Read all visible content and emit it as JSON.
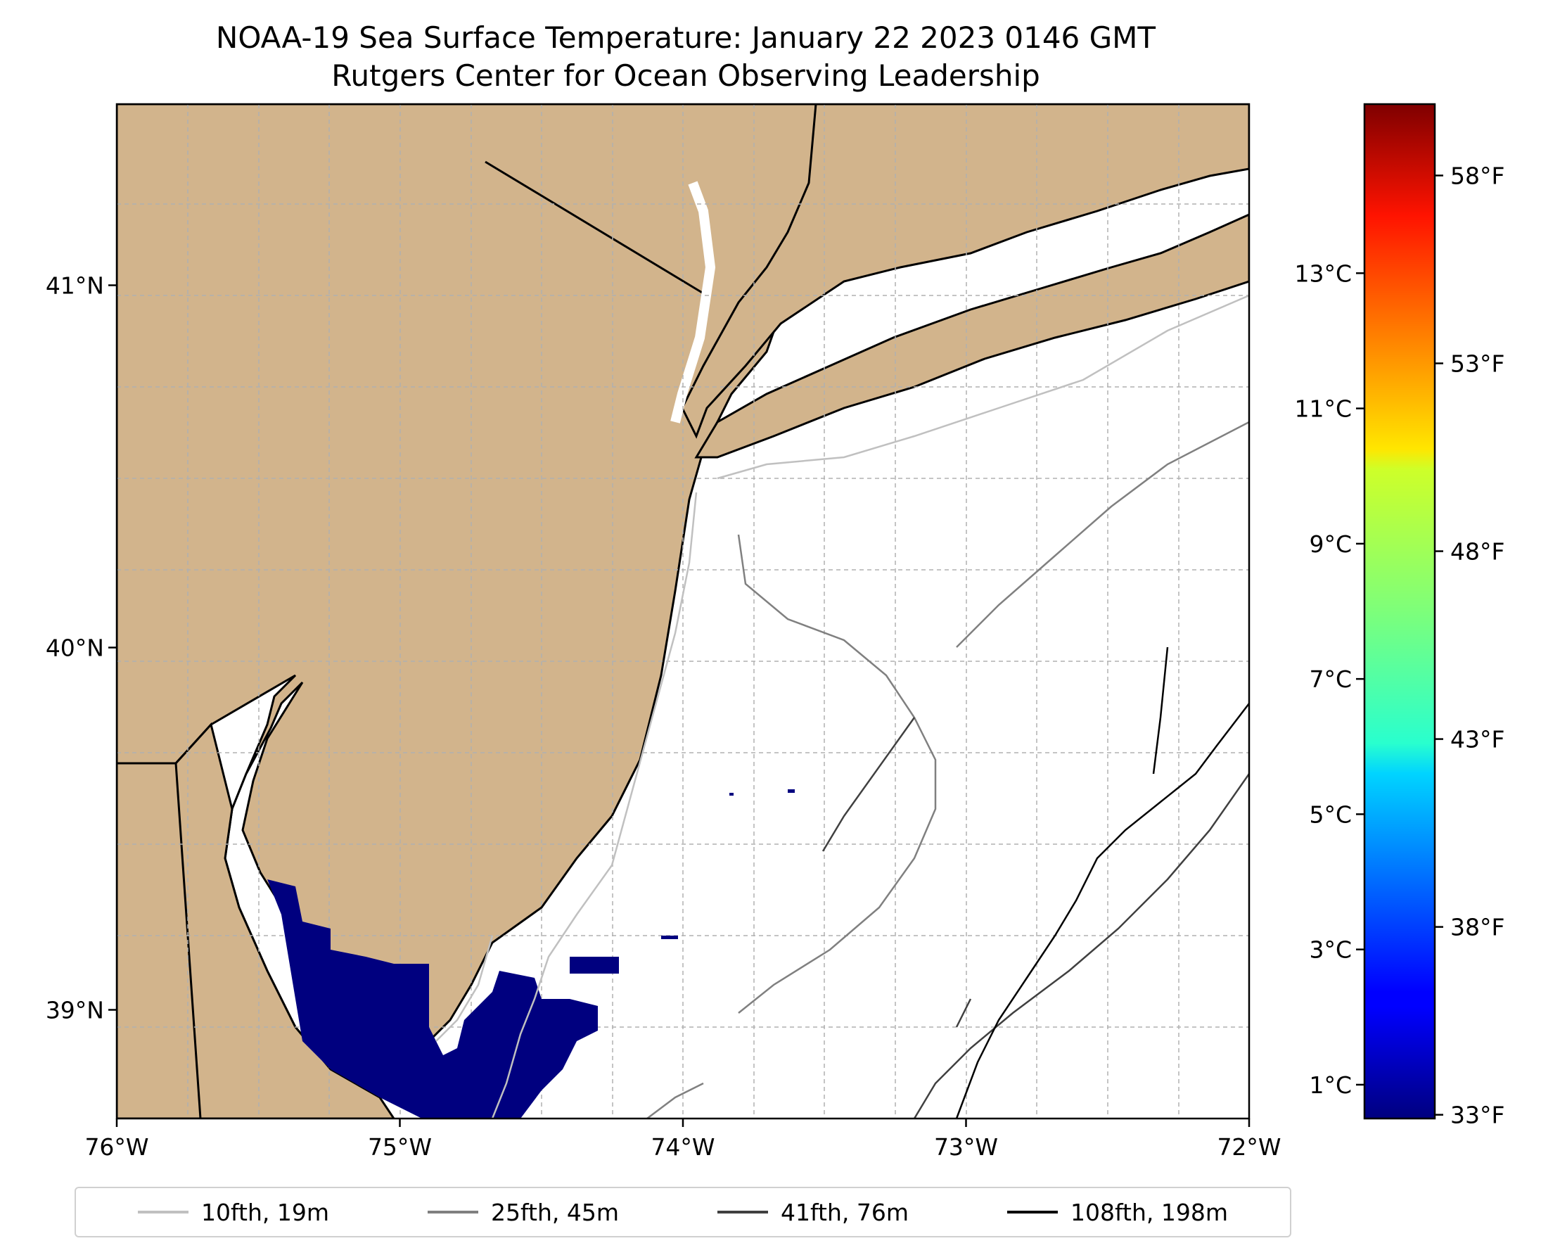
{
  "title": {
    "line1": "NOAA-19 Sea Surface Temperature: January 22 2023 0146 GMT",
    "line2": "Rutgers Center for Ocean Observing Leadership"
  },
  "map": {
    "lon_range": [
      -76,
      -72
    ],
    "lat_range": [
      38.7,
      41.5
    ],
    "lon_ticks": [
      {
        "value": -76,
        "label": "76°W"
      },
      {
        "value": -75,
        "label": "75°W"
      },
      {
        "value": -74,
        "label": "74°W"
      },
      {
        "value": -73,
        "label": "73°W"
      },
      {
        "value": -72,
        "label": "72°W"
      }
    ],
    "lat_ticks": [
      {
        "value": 39,
        "label": "39°N"
      },
      {
        "value": 40,
        "label": "40°N"
      },
      {
        "value": 41,
        "label": "41°N"
      }
    ],
    "grid": true,
    "land_color": "#d2b48c",
    "sst_color": "#00007f"
  },
  "colorbar": {
    "celsius_range": [
      0.5,
      15.5
    ],
    "celsius_ticks": [
      {
        "value": 1,
        "label": "1°C"
      },
      {
        "value": 3,
        "label": "3°C"
      },
      {
        "value": 5,
        "label": "5°C"
      },
      {
        "value": 7,
        "label": "7°C"
      },
      {
        "value": 9,
        "label": "9°C"
      },
      {
        "value": 11,
        "label": "11°C"
      },
      {
        "value": 13,
        "label": "13°C"
      }
    ],
    "fahrenheit_ticks": [
      {
        "value": 33,
        "label": "33°F"
      },
      {
        "value": 38,
        "label": "38°F"
      },
      {
        "value": 43,
        "label": "43°F"
      },
      {
        "value": 48,
        "label": "48°F"
      },
      {
        "value": 53,
        "label": "53°F"
      },
      {
        "value": 58,
        "label": "58°F"
      }
    ],
    "colormap": "jet"
  },
  "legend": {
    "items": [
      {
        "label": "10fth, 19m",
        "color": "#c0c0c0"
      },
      {
        "label": "25fth, 45m",
        "color": "#808080"
      },
      {
        "label": "41fth, 76m",
        "color": "#404040"
      },
      {
        "label": "108fth, 198m",
        "color": "#000000"
      }
    ]
  }
}
